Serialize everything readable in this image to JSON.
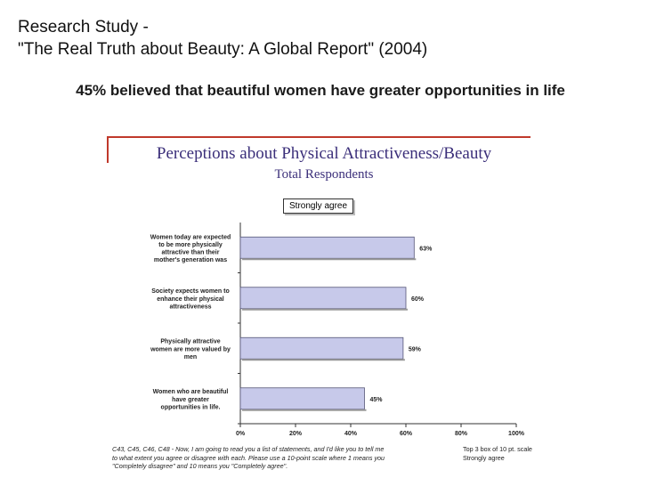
{
  "slide": {
    "title_line1": "Research Study -",
    "title_line2": "\"The Real Truth about Beauty: A Global Report\" (2004)",
    "subtitle": "45% believed that beautiful women have greater opportunities in life"
  },
  "chart_data": {
    "type": "bar",
    "orientation": "horizontal",
    "title": "Perceptions about Physical Attractiveness/Beauty",
    "subtitle": "Total Respondents",
    "categories": [
      "Women today are expected to be more physically attractive than their mother's generation was",
      "Society expects women to enhance their physical attractiveness",
      "Physically attractive women are more valued by men",
      "Women who are beautiful have greater opportunities in life."
    ],
    "series": [
      {
        "name": "Strongly agree",
        "values": [
          63,
          60,
          59,
          45
        ]
      }
    ],
    "value_labels": [
      "63%",
      "60%",
      "59%",
      "45%"
    ],
    "xlim": [
      0,
      100
    ],
    "x_ticks": [
      "0%",
      "20%",
      "40%",
      "60%",
      "80%",
      "100%"
    ],
    "legend_position": "top-center",
    "grid": false,
    "bar_color": "#c7c9ea",
    "bar_border": "#555577"
  },
  "footnote": "C43, C45, C46, C48 - Now, I am going to read you a list of statements, and I'd like you to tell me to what extent you agree or disagree with each. Please use a 10-point scale where 1 means you \"Completely disagree\" and 10 means you \"Completely agree\".",
  "box_note": "Top 3 box of 10 pt. scale Strongly agree"
}
